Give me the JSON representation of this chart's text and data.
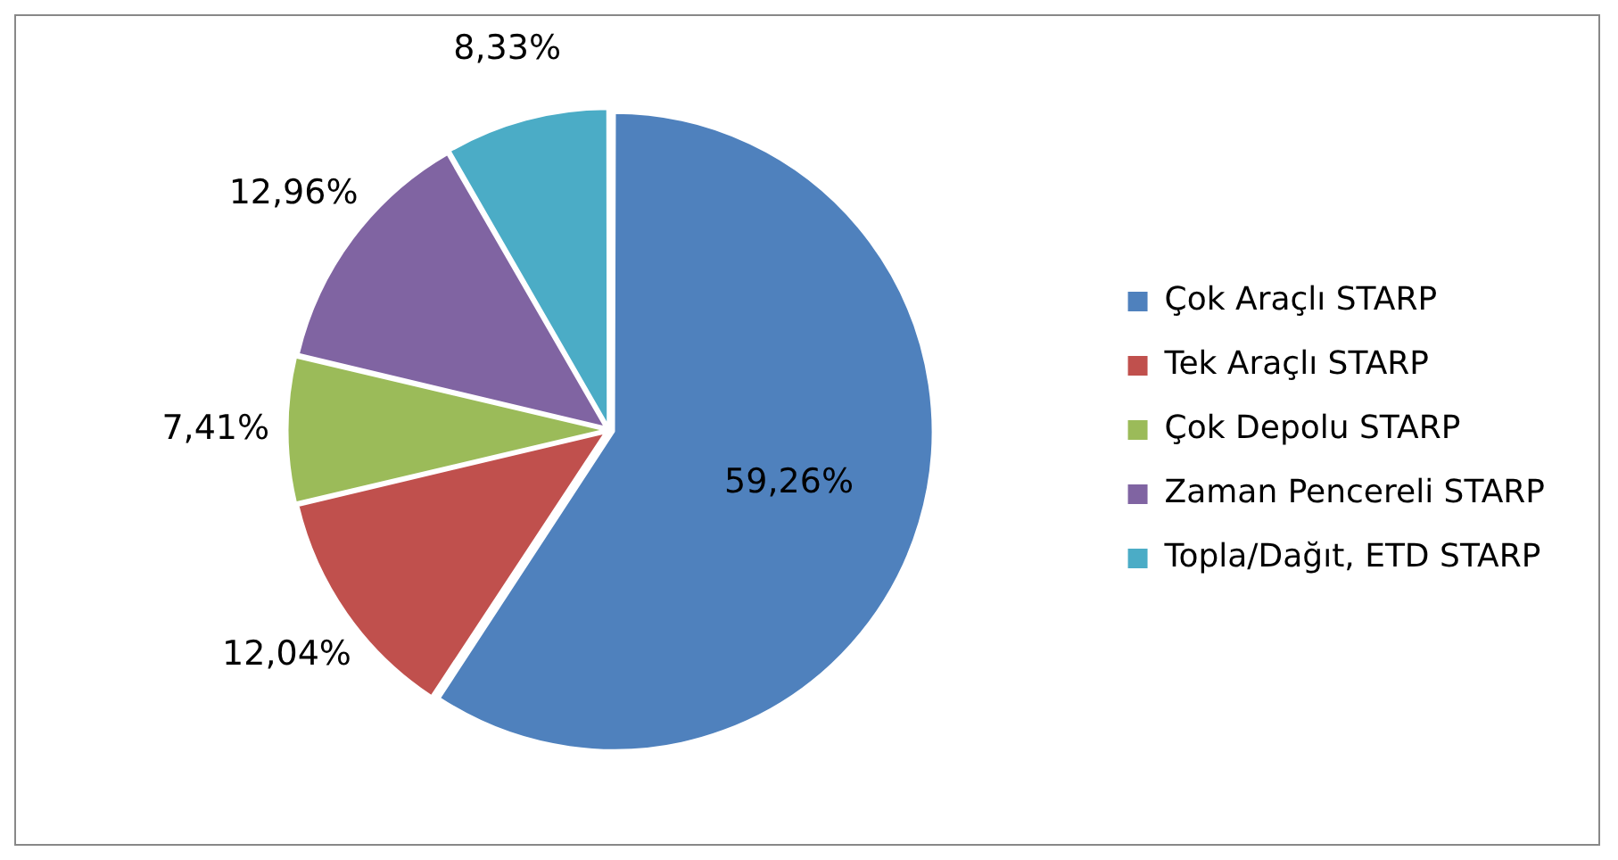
{
  "chart_data": {
    "type": "pie",
    "categories": [
      "Çok Araçlı STARP",
      "Tek Araçlı STARP",
      "Çok Depolu STARP",
      "Zaman Pencereli STARP",
      "Topla/Dağıt, ETD STARP"
    ],
    "values": [
      59.26,
      12.04,
      7.41,
      12.96,
      8.33
    ],
    "colors": [
      "#4f81bd",
      "#c0504d",
      "#9bbb59",
      "#8064a2",
      "#4bacc6"
    ],
    "value_labels": [
      "59,26%",
      "12,04%",
      "7,41%",
      "12,96%",
      "8,33%"
    ],
    "legend": "right"
  }
}
